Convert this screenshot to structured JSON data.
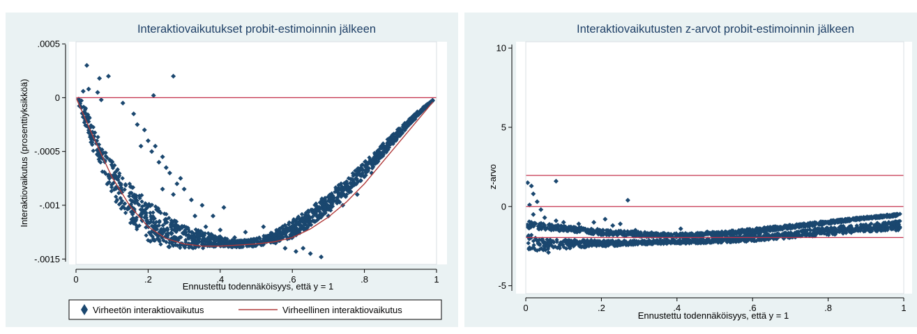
{
  "colors": {
    "panel_bg": "#eaf2f3",
    "plot_bg": "#ffffff",
    "title": "#1e3f66",
    "marker": "#1a476f",
    "ref_line": "#c4314b",
    "fit_line": "#b03a3a",
    "axis": "#000000"
  },
  "chart_data": [
    {
      "type": "scatter",
      "title": "Interaktiovaikutukset probit-estimoinnin jälkeen",
      "xlabel": "Ennustettu todennäköisyys, että y = 1",
      "ylabel": "Interaktiovaikutus (prosenttiyksikköä)",
      "xlim": [
        0,
        1
      ],
      "ylim": [
        -0.00155,
        0.00052
      ],
      "x_ticks": [
        0,
        0.2,
        0.4,
        0.6,
        0.8,
        1
      ],
      "x_tick_labels": [
        "0",
        ".2",
        ".4",
        ".6",
        ".8",
        "1"
      ],
      "y_ticks": [
        0.0005,
        0,
        -0.0005,
        -0.001,
        -0.0015
      ],
      "y_tick_labels": [
        ".0005",
        "0",
        "-.0005",
        "-.001",
        "-.0015"
      ],
      "reference_lines": [
        0
      ],
      "grid": false,
      "legend_position": "bottom",
      "series": [
        {
          "name": "Virheetön interaktiovaikutus",
          "mark": "diamond",
          "band": {
            "x": [
              0.005,
              0.02,
              0.05,
              0.1,
              0.15,
              0.2,
              0.25,
              0.3,
              0.35,
              0.4,
              0.45,
              0.5,
              0.55,
              0.6,
              0.65,
              0.7,
              0.75,
              0.8,
              0.85,
              0.9,
              0.95,
              0.99
            ],
            "lower": [
              -4e-05,
              -0.0002,
              -0.00052,
              -0.00092,
              -0.00117,
              -0.00133,
              -0.00139,
              -0.0014,
              -0.0014,
              -0.00139,
              -0.00139,
              -0.00138,
              -0.00136,
              -0.0013,
              -0.0012,
              -0.00107,
              -0.00092,
              -0.00074,
              -0.00055,
              -0.00035,
              -0.00016,
              -3e-05
            ],
            "upper": [
              2e-05,
              -4e-05,
              -0.00028,
              -0.00058,
              -0.0008,
              -0.00096,
              -0.00108,
              -0.00118,
              -0.00124,
              -0.00129,
              -0.00133,
              -0.00131,
              -0.00124,
              -0.00114,
              -0.00102,
              -0.00089,
              -0.00075,
              -0.0006,
              -0.00043,
              -0.00027,
              -0.00012,
              -2e-05
            ]
          },
          "points": [
            {
              "x": 0.03,
              "y": 0.0003
            },
            {
              "x": 0.035,
              "y": 8e-05
            },
            {
              "x": 0.065,
              "y": 0.00018
            },
            {
              "x": 0.09,
              "y": 0.0002
            },
            {
              "x": 0.27,
              "y": 0.0002
            },
            {
              "x": 0.215,
              "y": 2e-05
            },
            {
              "x": 0.06,
              "y": 5e-05
            },
            {
              "x": 0.02,
              "y": 6e-05
            },
            {
              "x": 0.07,
              "y": -2e-05
            },
            {
              "x": 0.13,
              "y": -5e-05
            },
            {
              "x": 0.16,
              "y": -0.00015
            },
            {
              "x": 0.17,
              "y": -0.00025
            },
            {
              "x": 0.19,
              "y": -0.0003
            },
            {
              "x": 0.2,
              "y": -0.0004
            },
            {
              "x": 0.22,
              "y": -0.00045
            },
            {
              "x": 0.21,
              "y": -0.0005
            },
            {
              "x": 0.24,
              "y": -0.00055
            },
            {
              "x": 0.23,
              "y": -0.0006
            },
            {
              "x": 0.25,
              "y": -0.00065
            },
            {
              "x": 0.26,
              "y": -0.0007
            },
            {
              "x": 0.28,
              "y": -0.0008
            },
            {
              "x": 0.3,
              "y": -0.00085
            },
            {
              "x": 0.32,
              "y": -0.00095
            },
            {
              "x": 0.27,
              "y": -0.0009
            },
            {
              "x": 0.35,
              "y": -0.001
            },
            {
              "x": 0.38,
              "y": -0.0011
            },
            {
              "x": 0.41,
              "y": -0.00102
            },
            {
              "x": 0.33,
              "y": -0.0011
            },
            {
              "x": 0.36,
              "y": -0.0012
            },
            {
              "x": 0.4,
              "y": -0.00123
            },
            {
              "x": 0.47,
              "y": -0.00125
            },
            {
              "x": 0.52,
              "y": -0.0012
            },
            {
              "x": 0.56,
              "y": -0.00125
            },
            {
              "x": 0.58,
              "y": -0.0014
            },
            {
              "x": 0.61,
              "y": -0.00143
            },
            {
              "x": 0.63,
              "y": -0.0014
            },
            {
              "x": 0.65,
              "y": -0.00145
            },
            {
              "x": 0.68,
              "y": -0.00148
            },
            {
              "x": 0.6,
              "y": -0.0013
            },
            {
              "x": 0.7,
              "y": -0.0011
            },
            {
              "x": 0.74,
              "y": -0.001
            },
            {
              "x": 0.78,
              "y": -0.0009
            },
            {
              "x": 0.82,
              "y": -0.0007
            },
            {
              "x": 0.86,
              "y": -0.0005
            },
            {
              "x": 0.9,
              "y": -0.0003
            },
            {
              "x": 0.94,
              "y": -0.0002
            },
            {
              "x": 0.97,
              "y": -0.0001
            },
            {
              "x": 0.18,
              "y": -0.00045
            },
            {
              "x": 0.24,
              "y": -0.00085
            },
            {
              "x": 0.29,
              "y": -0.00075
            },
            {
              "x": 0.44,
              "y": -0.0013
            },
            {
              "x": 0.5,
              "y": -0.00133
            }
          ]
        },
        {
          "name": "Virheellinen interaktiovaikutus",
          "mark": "line",
          "x": [
            0,
            0.05,
            0.1,
            0.15,
            0.2,
            0.25,
            0.3,
            0.35,
            0.4,
            0.45,
            0.5,
            0.55,
            0.6,
            0.65,
            0.7,
            0.75,
            0.8,
            0.85,
            0.9,
            0.95,
            0.99
          ],
          "y": [
            0,
            -0.00038,
            -0.00074,
            -0.00101,
            -0.0012,
            -0.00131,
            -0.00136,
            -0.00138,
            -0.00138,
            -0.00137,
            -0.00136,
            -0.00134,
            -0.0013,
            -0.00122,
            -0.00111,
            -0.00097,
            -0.0008,
            -0.0006,
            -0.0004,
            -0.0002,
            -4e-05
          ]
        }
      ]
    },
    {
      "type": "scatter",
      "title": "Interaktiovaikutusten z-arvot probit-estimoinnin jälkeen",
      "xlabel": "Ennustettu todennäköisyys, että y = 1",
      "ylabel": "z-arvo",
      "xlim": [
        0,
        1
      ],
      "ylim": [
        -5.5,
        10.4
      ],
      "x_ticks": [
        0,
        0.2,
        0.4,
        0.6,
        0.8,
        1
      ],
      "x_tick_labels": [
        "0",
        ".2",
        ".4",
        ".6",
        ".8",
        "1"
      ],
      "y_ticks": [
        10,
        5,
        0,
        -5
      ],
      "y_tick_labels": [
        "10",
        "5",
        "0",
        "-5"
      ],
      "reference_lines": [
        1.96,
        0,
        -1.96
      ],
      "grid": false,
      "series": [
        {
          "name": "",
          "mark": "diamond",
          "bands": [
            {
              "x": [
                0.003,
                0.03,
                0.08,
                0.15,
                0.22,
                0.3,
                0.4,
                0.5,
                0.6,
                0.7,
                0.8,
                0.9,
                0.99
              ],
              "lower": [
                -2.8,
                -2.8,
                -2.7,
                -2.6,
                -2.5,
                -2.4,
                -2.35,
                -2.3,
                -2.2,
                -2.0,
                -1.8,
                -1.6,
                -1.5
              ],
              "upper": [
                -1.5,
                -2.0,
                -2.1,
                -2.1,
                -2.15,
                -2.15,
                -2.1,
                -2.0,
                -1.8,
                -1.6,
                -1.3,
                -1.1,
                -0.9
              ]
            },
            {
              "x": [
                0.003,
                0.02,
                0.06,
                0.12,
                0.2,
                0.3,
                0.4,
                0.5,
                0.6,
                0.7,
                0.8,
                0.9,
                0.99
              ],
              "lower": [
                -1.4,
                -1.4,
                -1.5,
                -1.6,
                -1.8,
                -1.9,
                -2.0,
                -1.9,
                -1.7,
                -1.4,
                -1.1,
                -0.8,
                -0.6
              ],
              "upper": [
                -0.9,
                -1.0,
                -1.1,
                -1.25,
                -1.45,
                -1.6,
                -1.7,
                -1.6,
                -1.4,
                -1.15,
                -0.9,
                -0.65,
                -0.45
              ]
            }
          ],
          "points": [
            {
              "x": 0.005,
              "y": 1.5
            },
            {
              "x": 0.015,
              "y": 1.3
            },
            {
              "x": 0.02,
              "y": 0.8
            },
            {
              "x": 0.03,
              "y": 0.3
            },
            {
              "x": 0.01,
              "y": 0.1
            },
            {
              "x": 0.04,
              "y": -0.2
            },
            {
              "x": 0.08,
              "y": 1.6
            },
            {
              "x": 0.27,
              "y": 0.4
            },
            {
              "x": 0.02,
              "y": -0.5
            },
            {
              "x": 0.05,
              "y": -0.7
            },
            {
              "x": 0.08,
              "y": -0.9
            },
            {
              "x": 0.1,
              "y": -1.0
            },
            {
              "x": 0.14,
              "y": -1.1
            },
            {
              "x": 0.18,
              "y": -1.0
            },
            {
              "x": 0.21,
              "y": -0.8
            },
            {
              "x": 0.23,
              "y": -1.2
            },
            {
              "x": 0.25,
              "y": -1.1
            },
            {
              "x": 0.29,
              "y": -1.5
            },
            {
              "x": 0.33,
              "y": -1.7
            },
            {
              "x": 0.36,
              "y": -1.8
            },
            {
              "x": 0.41,
              "y": -1.4
            },
            {
              "x": 0.45,
              "y": -1.9
            },
            {
              "x": 0.48,
              "y": -1.6
            },
            {
              "x": 0.12,
              "y": -1.3
            },
            {
              "x": 0.06,
              "y": -2.9
            },
            {
              "x": 0.01,
              "y": -2.6
            }
          ]
        }
      ]
    }
  ]
}
